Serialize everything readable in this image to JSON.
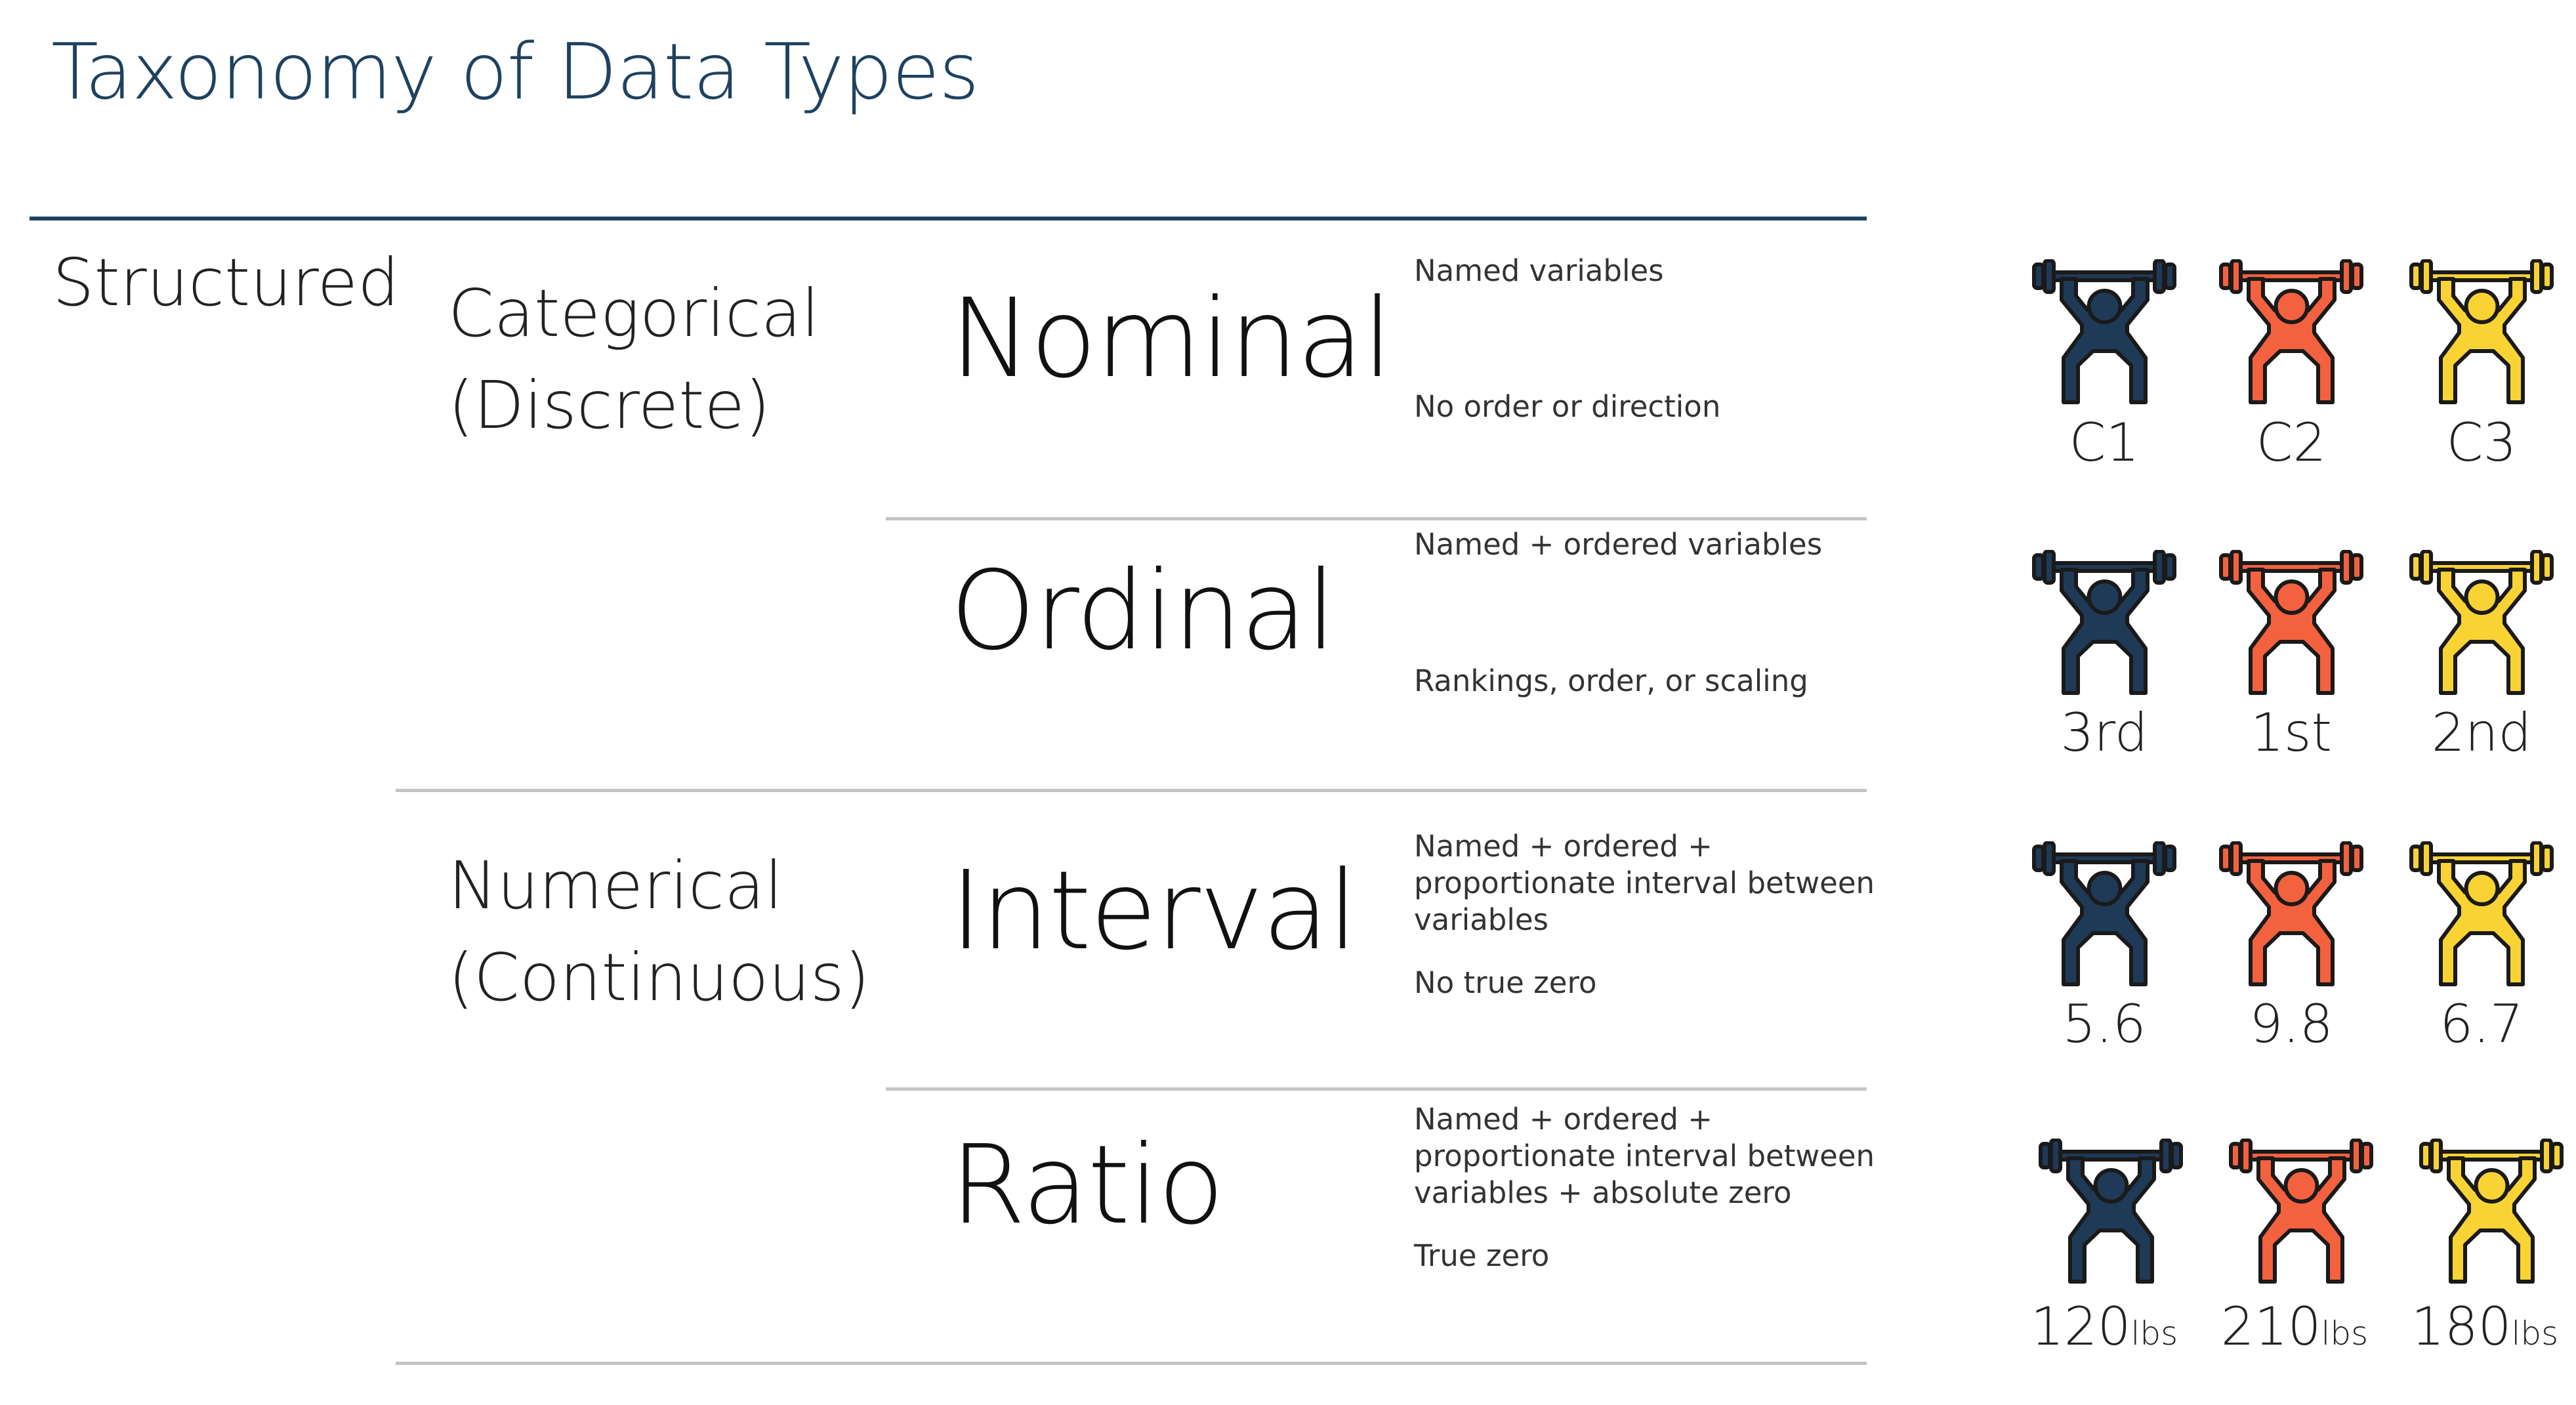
{
  "title": "Taxonomy of Data Types",
  "level1": "Structured",
  "categories": [
    {
      "line1": "Categorical",
      "line2": "(Discrete)"
    },
    {
      "line1": "Numerical",
      "line2": "(Continuous)"
    }
  ],
  "types": [
    {
      "name": "Nominal",
      "desc1": "Named variables",
      "desc2": "No order or direction"
    },
    {
      "name": "Ordinal",
      "desc1": "Named + ordered variables",
      "desc2": "Rankings, order, or scaling"
    },
    {
      "name": "Interval",
      "desc1": "Named + ordered + proportionate interval between variables",
      "desc2": "No true zero"
    },
    {
      "name": "Ratio",
      "desc1": "Named + ordered + proportionate interval between variables + absolute zero",
      "desc2": "True zero"
    }
  ],
  "colors": {
    "navy": "#1f3a57",
    "coral": "#f4613f",
    "yellow": "#f9d334",
    "outline": "#1a1a1a",
    "title": "#1e4260"
  },
  "lifter_icon": "weightlifter-icon",
  "examples": [
    [
      "C1",
      "C2",
      "C3"
    ],
    [
      "3rd",
      "1st",
      "2nd"
    ],
    [
      "5.6",
      "9.8",
      "6.7"
    ],
    [
      {
        "num": "120",
        "unit": "lbs"
      },
      {
        "num": "210",
        "unit": "lbs"
      },
      {
        "num": "180",
        "unit": "lbs"
      }
    ]
  ]
}
